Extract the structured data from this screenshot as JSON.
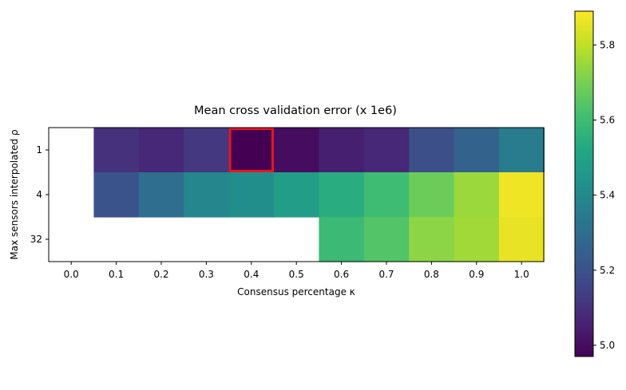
{
  "chart_data": {
    "type": "heatmap",
    "title": "Mean cross validation error (x 1e6)",
    "xlabel": "Consensus percentage κ",
    "ylabel": "Max sensors interpolated ρ",
    "x_categories": [
      "0.0",
      "0.1",
      "0.2",
      "0.3",
      "0.4",
      "0.5",
      "0.6",
      "0.7",
      "0.8",
      "0.9",
      "1.0"
    ],
    "y_categories": [
      "1",
      "4",
      "32"
    ],
    "values": [
      [
        null,
        5.1,
        5.07,
        5.12,
        4.97,
        5.0,
        5.05,
        5.07,
        5.19,
        5.26,
        5.35
      ],
      [
        null,
        5.21,
        5.3,
        5.39,
        5.42,
        5.48,
        5.54,
        5.6,
        5.68,
        5.75,
        5.87
      ],
      [
        null,
        null,
        null,
        null,
        null,
        null,
        5.59,
        5.64,
        5.73,
        5.76,
        5.86
      ]
    ],
    "highlight": {
      "row": 0,
      "col": 4,
      "color": "#e8151b"
    },
    "colorbar": {
      "vmin": 4.97,
      "vmax": 5.89,
      "ticks": [
        "5.0",
        "5.2",
        "5.4",
        "5.6",
        "5.8"
      ],
      "tick_values": [
        5.0,
        5.2,
        5.4,
        5.6,
        5.8
      ],
      "colormap": "viridis"
    }
  }
}
